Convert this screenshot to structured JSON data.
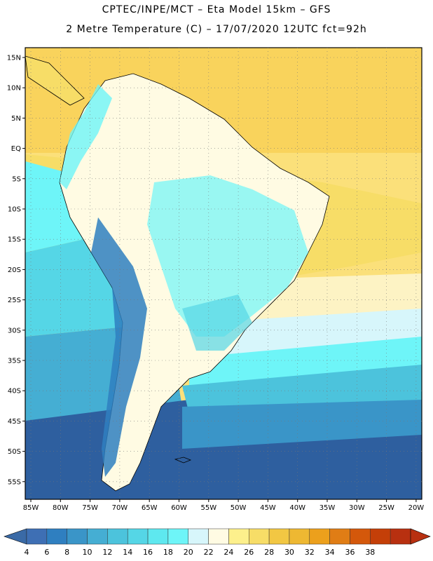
{
  "header": {
    "line1": "CPTEC/INPE/MCT –  Eta Model 15km – GFS",
    "line2": "2 Metre Temperature (C) – 17/07/2020 12UTC fct=92h"
  },
  "map": {
    "lat_labels": [
      "15N",
      "10N",
      "5N",
      "EQ",
      "5S",
      "10S",
      "15S",
      "20S",
      "25S",
      "30S",
      "35S",
      "40S",
      "45S",
      "50S",
      "55S"
    ],
    "lon_labels": [
      "85W",
      "80W",
      "75W",
      "70W",
      "65W",
      "60W",
      "55W",
      "50W",
      "45W",
      "40W",
      "35W",
      "30W",
      "25W",
      "20W"
    ]
  },
  "colorbar": {
    "labels": [
      "4",
      "6",
      "8",
      "10",
      "12",
      "14",
      "16",
      "18",
      "20",
      "22",
      "24",
      "26",
      "28",
      "30",
      "32",
      "34",
      "36",
      "38"
    ],
    "colors": [
      "#3e6fb4",
      "#2f7fc0",
      "#3a95c8",
      "#45aed3",
      "#4cc3dc",
      "#55d6e6",
      "#5ee8ef",
      "#6ef5f8",
      "#d7f6fb",
      "#fffbe3",
      "#fdf08c",
      "#f7dd67",
      "#f2c743",
      "#eeb832",
      "#eca01c",
      "#e07d15",
      "#d4580b",
      "#c43f08",
      "#b83010"
    ],
    "under_color": "#3a6aa6",
    "over_color": "#b83010"
  }
}
